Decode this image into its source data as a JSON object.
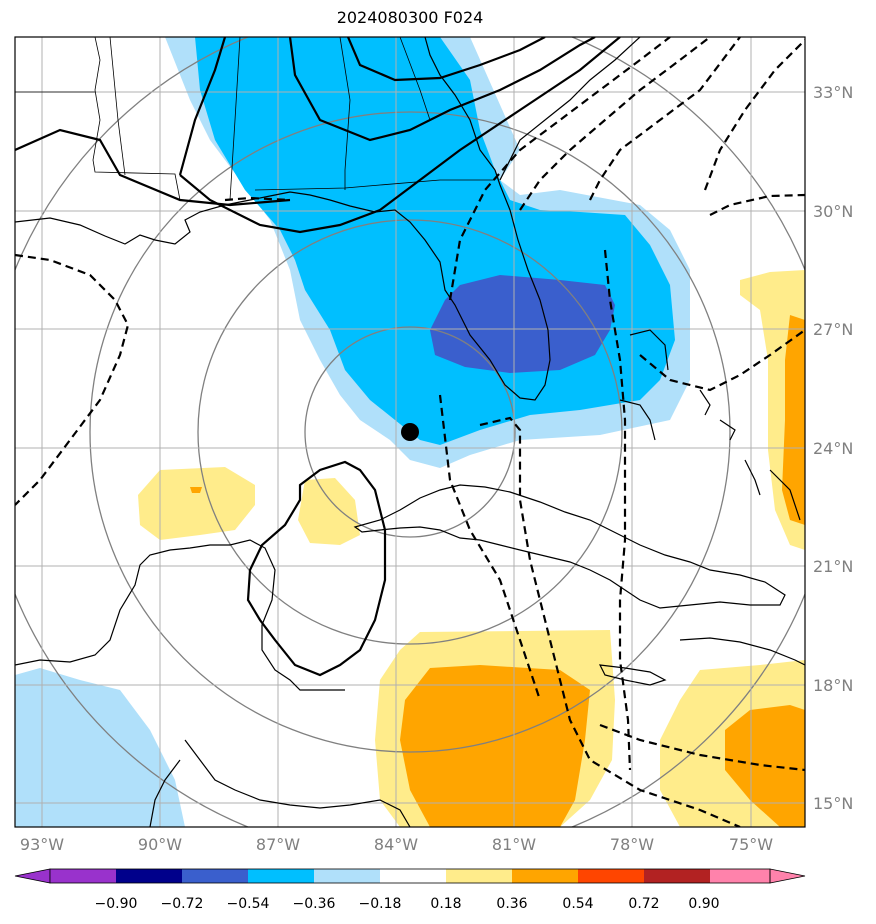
{
  "title": "2024080300 F024",
  "axes": {
    "lon_labels": [
      "93°W",
      "90°W",
      "87°W",
      "84°W",
      "81°W",
      "78°W",
      "75°W"
    ],
    "lat_labels": [
      "33°N",
      "30°N",
      "27°N",
      "24°N",
      "21°N",
      "18°N",
      "15°N"
    ]
  },
  "colorbar": {
    "labels": [
      "−0.90",
      "−0.72",
      "−0.54",
      "−0.36",
      "−0.18",
      "0.18",
      "0.36",
      "0.54",
      "0.72",
      "0.90"
    ],
    "colors": [
      "#9932cc",
      "#00008b",
      "#3a5fcd",
      "#00bfff",
      "#b0e0fa",
      "#ffffff",
      "#ffec8b",
      "#ffa500",
      "#ff4500",
      "#b22222",
      "#ff82ab"
    ]
  },
  "fill_colors": {
    "light_blue": "#b0e0fa",
    "deep_sky_blue": "#00bfff",
    "royal_blue": "#3a5fcd",
    "light_yellow": "#ffec8b",
    "orange": "#ffa500"
  },
  "marker": {
    "lon": -83.8,
    "lat": 24.4,
    "color": "#000000"
  }
}
